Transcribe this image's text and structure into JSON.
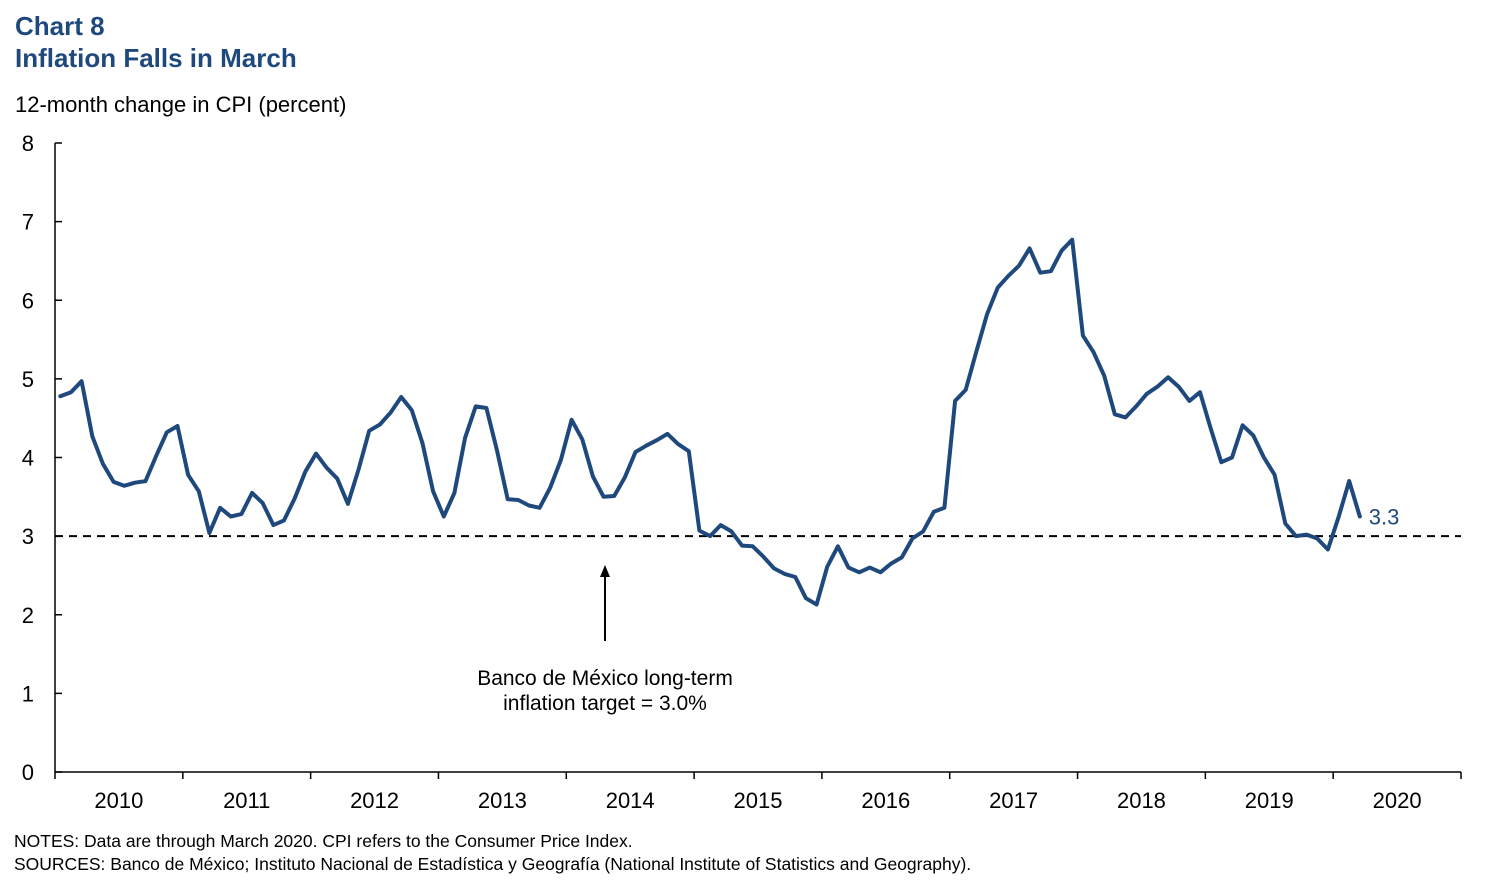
{
  "header": {
    "title_line1": "Chart 8",
    "title_line2": "Inflation Falls in March",
    "y_axis_label": "12-month change in CPI (percent)"
  },
  "footer": {
    "notes": "NOTES: Data are through  March 2020. CPI refers to the Consumer Price Index.",
    "sources": "SOURCES: Banco de México; Instituto Nacional  de Estadística y Geografía (National Institute of Statistics and Geography)."
  },
  "colors": {
    "series": "#1f497d",
    "target_line": "#000000",
    "axis": "#000000"
  },
  "chart_data": {
    "type": "line",
    "title": "Inflation Falls in March",
    "ylabel": "12-month change in CPI (percent)",
    "ylim": [
      0,
      8
    ],
    "yticks": [
      0,
      1,
      2,
      3,
      4,
      5,
      6,
      7,
      8
    ],
    "xlim": [
      "2010-01",
      "2020-12"
    ],
    "xtick_labels": [
      "2010",
      "2011",
      "2012",
      "2013",
      "2014",
      "2015",
      "2016",
      "2017",
      "2018",
      "2019",
      "2020"
    ],
    "grid": false,
    "series": [
      {
        "name": "",
        "start": "2010-01",
        "frequency": "monthly",
        "values": [
          4.78,
          4.83,
          4.97,
          4.27,
          3.92,
          3.69,
          3.64,
          3.68,
          3.7,
          4.02,
          4.32,
          4.4,
          3.78,
          3.57,
          3.04,
          3.36,
          3.25,
          3.28,
          3.55,
          3.42,
          3.14,
          3.2,
          3.48,
          3.82,
          4.05,
          3.87,
          3.73,
          3.41,
          3.85,
          4.34,
          4.42,
          4.57,
          4.77,
          4.6,
          4.18,
          3.57,
          3.25,
          3.55,
          4.25,
          4.65,
          4.63,
          4.09,
          3.47,
          3.46,
          3.39,
          3.36,
          3.62,
          3.97,
          4.48,
          4.23,
          3.76,
          3.5,
          3.51,
          3.75,
          4.07,
          4.15,
          4.22,
          4.3,
          4.17,
          4.08,
          3.07,
          3.0,
          3.14,
          3.06,
          2.88,
          2.87,
          2.74,
          2.59,
          2.52,
          2.48,
          2.21,
          2.13,
          2.61,
          2.87,
          2.6,
          2.54,
          2.6,
          2.54,
          2.65,
          2.73,
          2.97,
          3.06,
          3.31,
          3.36,
          4.72,
          4.86,
          5.35,
          5.82,
          6.16,
          6.31,
          6.44,
          6.66,
          6.35,
          6.37,
          6.63,
          6.77,
          5.55,
          5.34,
          5.04,
          4.55,
          4.51,
          4.65,
          4.81,
          4.9,
          5.02,
          4.9,
          4.72,
          4.83,
          4.37,
          3.94,
          4.0,
          4.41,
          4.28,
          4.0,
          3.78,
          3.16,
          3.0,
          3.02,
          2.97,
          2.83,
          3.24,
          3.7,
          3.25
        ],
        "end_label": "3.3"
      }
    ],
    "reference_lines": [
      {
        "value": 3.0,
        "style": "dashed"
      }
    ],
    "annotations": [
      {
        "text_line1": "Banco de México long-term",
        "text_line2": "inflation target = 3.0%",
        "points_to": 3.0
      }
    ]
  }
}
